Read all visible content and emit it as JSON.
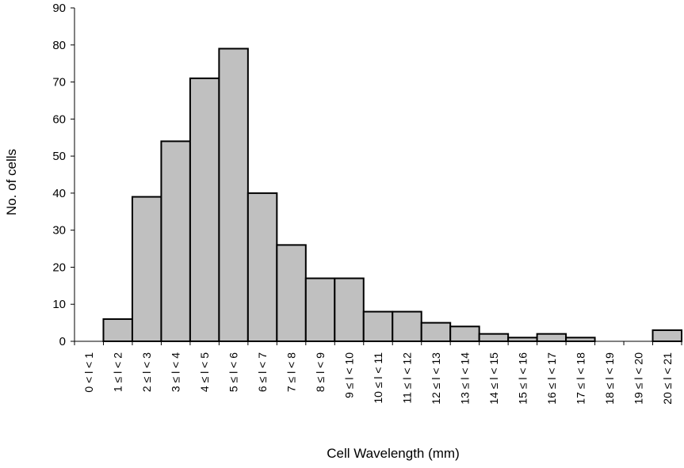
{
  "chart_data": {
    "type": "bar",
    "xlabel": "Cell Wavelength (mm)",
    "ylabel": "No. of cells",
    "ylim": [
      0,
      90
    ],
    "yticks": [
      "0",
      "10",
      "20",
      "30",
      "40",
      "50",
      "60",
      "70",
      "80",
      "90"
    ],
    "categories": [
      "0 < l < 1",
      "1 ≤ l < 2",
      "2 ≤ l < 3",
      "3 ≤ l < 4",
      "4 ≤ l < 5",
      "5 ≤ l < 6",
      "6 ≤ l < 7",
      "7 ≤ l < 8",
      "8 ≤ l < 9",
      "9 ≤ l < 10",
      "10 ≤ l < 11",
      "11 ≤ l < 12",
      "12 ≤ l < 13",
      "13 ≤ l < 14",
      "14 ≤ l < 15",
      "15 ≤ l < 16",
      "16 ≤ l < 17",
      "17 ≤ l < 18",
      "18 ≤ l < 19",
      "19 ≤ l < 20",
      "20 ≤ l < 21"
    ],
    "values": [
      0,
      6,
      39,
      54,
      71,
      79,
      40,
      26,
      17,
      17,
      8,
      8,
      5,
      4,
      2,
      1,
      2,
      1,
      0,
      0,
      3
    ],
    "bar_color": "#c0c0c0",
    "bar_edge_color": "#000000",
    "grid": false,
    "legend": "none"
  }
}
